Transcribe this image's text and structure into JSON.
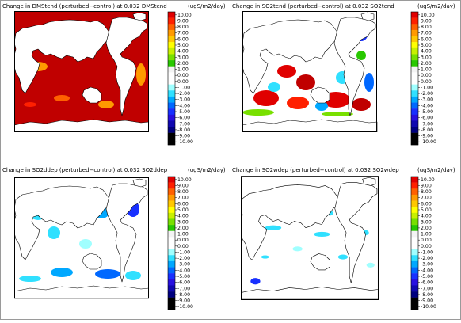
{
  "colorbar": {
    "title": "(ugS/m2/day)",
    "ticks": [
      "10.00",
      "9.00",
      "8.00",
      "7.00",
      "6.00",
      "5.00",
      "4.00",
      "3.00",
      "2.00",
      "1.00",
      "0.00",
      "0.00",
      "-1.00",
      "-2.00",
      "-3.00",
      "-4.00",
      "-5.00",
      "-6.00",
      "-7.00",
      "-8.00",
      "-9.00",
      "-10.00"
    ],
    "colors": [
      "#e00000",
      "#ff2000",
      "#ff6000",
      "#ff9a00",
      "#ffc800",
      "#ffff00",
      "#c8f000",
      "#78e000",
      "#28c800",
      "#f4f4f4",
      "#ffffff",
      "#ffffff",
      "#a0ffff",
      "#30e0ff",
      "#00a8ff",
      "#0068ff",
      "#1830ff",
      "#2810e0",
      "#1008b0",
      "#000080",
      "#000000",
      "#000000"
    ]
  },
  "panels": [
    {
      "id": "dmstend",
      "title": "Change in DMStend (perturbed−control) at  0.032 DMStend",
      "ocean_color": "#c00000",
      "ocean_pattern": "red",
      "colors": {
        "land": "#ffffff",
        "coast": "#000000"
      }
    },
    {
      "id": "so2tend",
      "title": "Change in SO2tend (perturbed−control) at  0.032 SO2tend",
      "ocean_color": "#ffffff",
      "ocean_pattern": "mixed"
    },
    {
      "id": "so2ddep",
      "title": "Change in SO2ddep (perturbed−control) at  0.032 SO2ddep",
      "ocean_color": "#ffffff",
      "ocean_pattern": "blue"
    },
    {
      "id": "so2wdep",
      "title": "Change in SO2wdep (perturbed−control) at  0.032 SO2wdep",
      "ocean_color": "#ffffff",
      "ocean_pattern": "sparse"
    }
  ]
}
